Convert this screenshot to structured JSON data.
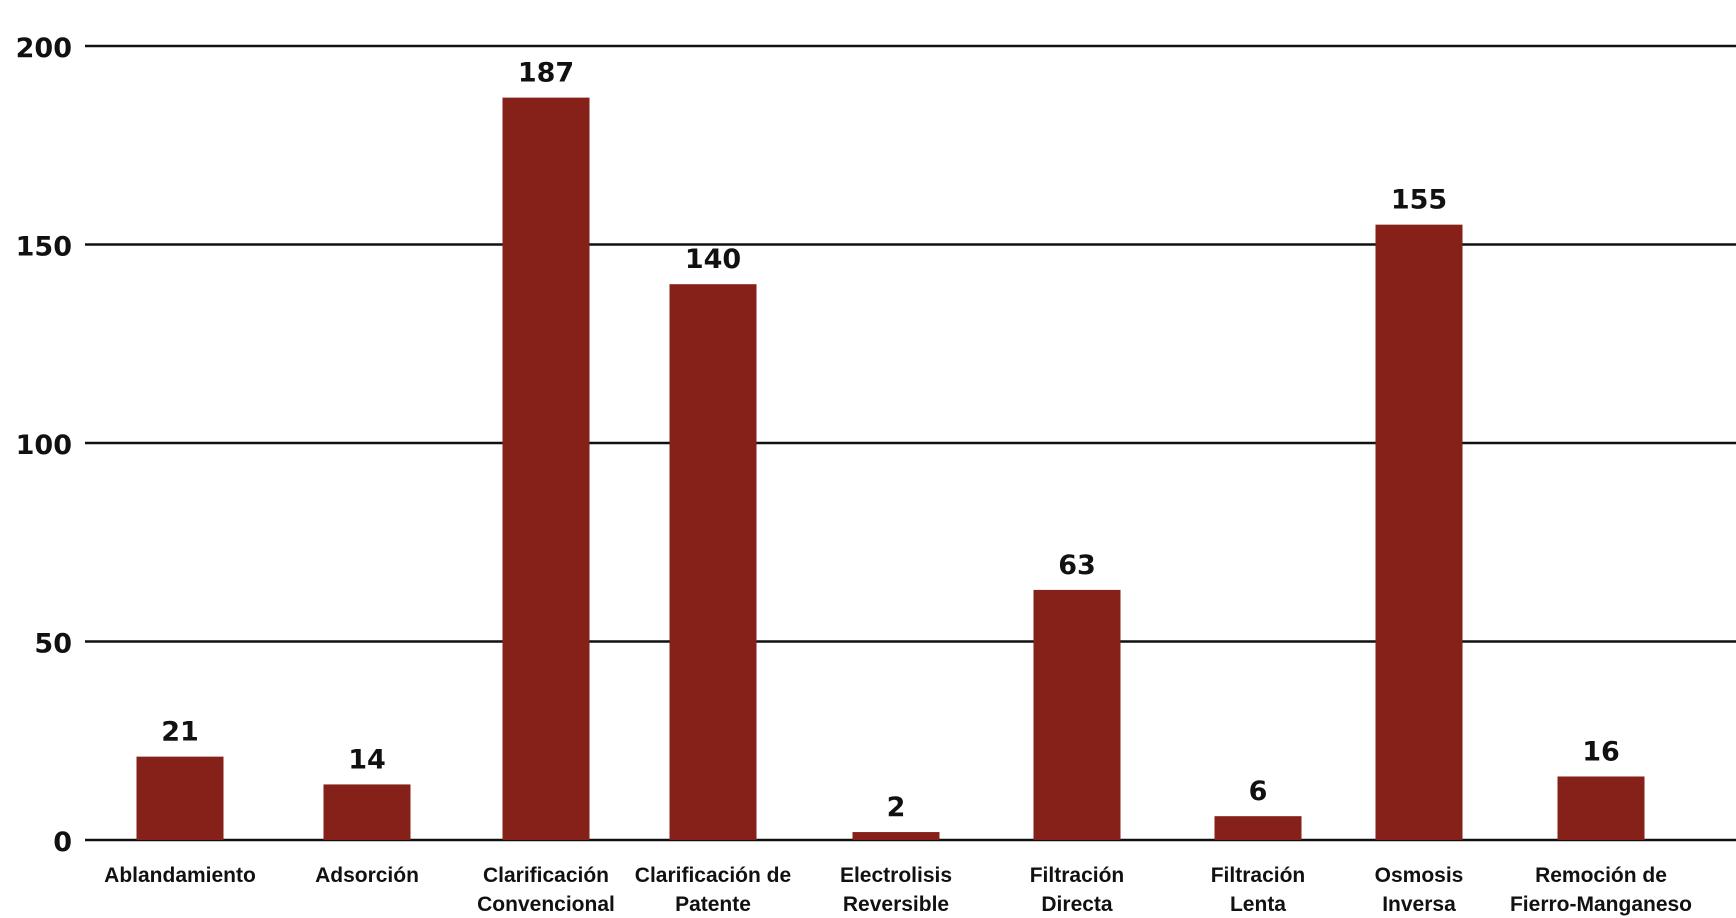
{
  "chart_data": {
    "type": "bar",
    "title": "",
    "xlabel": "",
    "ylabel": "",
    "categories": [
      [
        "Ablandamiento"
      ],
      [
        "Adsorción"
      ],
      [
        "Clarificación",
        "Convencional"
      ],
      [
        "Clarificación de",
        "Patente"
      ],
      [
        "Electrolisis",
        "Reversible"
      ],
      [
        "Filtración",
        "Directa"
      ],
      [
        "Filtración",
        "Lenta"
      ],
      [
        "Osmosis",
        "Inversa"
      ],
      [
        "Remoción de",
        "Fierro-Manganeso"
      ]
    ],
    "values": [
      21,
      14,
      187,
      140,
      2,
      63,
      6,
      155,
      16
    ],
    "yticks": [
      0,
      50,
      100,
      150,
      200
    ],
    "ylim": [
      0,
      200
    ],
    "grid": true,
    "legend": "none",
    "colors": {
      "bar": "#86211A",
      "grid": "#111111",
      "text": "#111111"
    }
  }
}
